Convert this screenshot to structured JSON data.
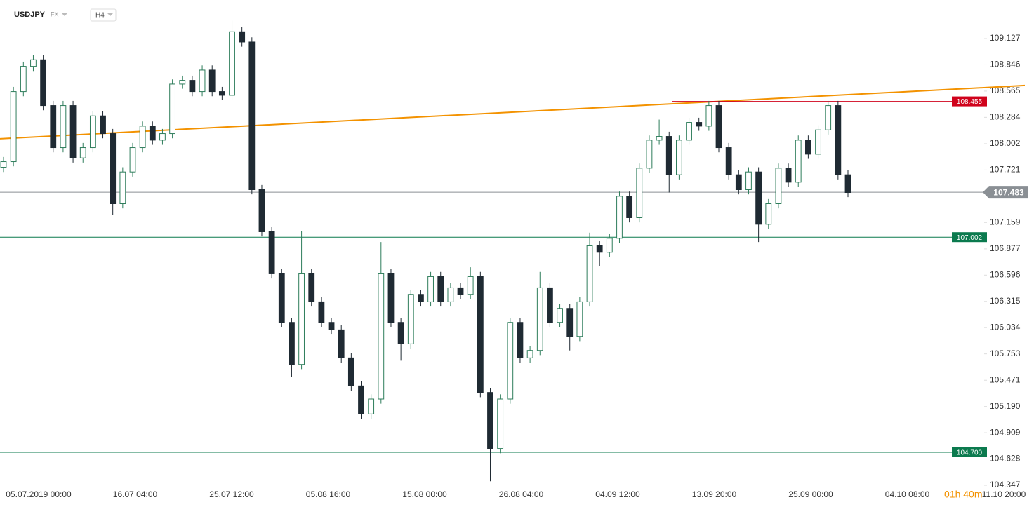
{
  "header": {
    "symbol": "USDJPY",
    "market": "FX",
    "interval": "H4"
  },
  "countdown": "01h 40m",
  "chart_data": {
    "type": "candlestick",
    "categories": [
      "05.07.2019  00:00",
      "16.07  04:00",
      "25.07  12:00",
      "05.08  16:00",
      "15.08  00:00",
      "26.08  04:00",
      "04.09  12:00",
      "13.09  20:00",
      "25.09  00:00",
      "04.10  08:00",
      "11.10  20:00"
    ],
    "open": [
      107.75,
      107.81,
      108.56,
      108.83,
      108.9,
      108.41,
      107.96,
      108.41,
      107.85,
      107.96,
      108.3,
      108.11,
      107.36,
      107.7,
      107.96,
      108.19,
      108.04,
      108.11,
      108.64,
      108.68,
      108.56,
      108.79,
      108.56,
      108.52,
      109.2,
      109.09,
      107.51,
      107.06,
      106.61,
      106.09,
      105.64,
      106.61,
      106.31,
      106.09,
      106.01,
      105.71,
      105.41,
      105.11,
      105.27,
      106.61,
      106.09,
      105.86,
      106.39,
      106.31,
      106.58,
      106.31,
      106.46,
      106.39,
      106.58,
      105.34,
      104.74,
      105.27,
      106.09,
      105.71,
      105.79,
      106.46,
      106.09,
      106.24,
      105.94,
      106.31,
      106.91,
      106.84,
      106.99,
      107.44,
      107.21,
      107.74,
      108.04,
      108.08,
      107.67,
      108.04,
      108.23,
      108.19,
      108.41,
      107.96,
      107.67,
      107.51,
      107.7,
      107.14,
      107.36,
      107.74,
      107.59,
      108.04,
      107.89,
      108.15,
      108.41,
      107.67
    ],
    "high": [
      107.86,
      108.61,
      108.88,
      108.95,
      108.95,
      108.46,
      108.46,
      108.46,
      108.01,
      108.35,
      108.35,
      108.16,
      107.75,
      108.01,
      108.24,
      108.24,
      108.16,
      108.69,
      108.73,
      108.73,
      108.84,
      108.84,
      108.61,
      109.32,
      109.25,
      109.14,
      107.56,
      107.11,
      106.66,
      106.14,
      107.07,
      106.66,
      106.36,
      106.14,
      106.06,
      105.76,
      105.46,
      105.32,
      106.95,
      106.66,
      106.14,
      106.44,
      106.44,
      106.63,
      106.63,
      106.51,
      106.51,
      106.68,
      106.63,
      105.39,
      105.32,
      106.14,
      106.14,
      105.84,
      106.63,
      106.51,
      106.29,
      106.29,
      106.36,
      107.05,
      106.96,
      107.04,
      107.49,
      107.49,
      107.79,
      108.09,
      108.26,
      108.13,
      108.09,
      108.28,
      108.28,
      108.46,
      108.46,
      108.01,
      107.72,
      107.75,
      107.75,
      107.41,
      107.79,
      107.79,
      108.09,
      108.09,
      108.2,
      108.46,
      108.46,
      107.72
    ],
    "low": [
      107.7,
      107.76,
      108.51,
      108.78,
      108.36,
      107.91,
      107.91,
      107.8,
      107.8,
      107.91,
      108.06,
      107.24,
      107.31,
      107.65,
      107.91,
      107.99,
      107.99,
      108.06,
      108.59,
      108.51,
      108.51,
      108.51,
      108.47,
      108.47,
      109.04,
      107.46,
      107.01,
      106.56,
      106.04,
      105.51,
      105.59,
      106.26,
      106.04,
      105.96,
      105.66,
      105.36,
      105.06,
      105.06,
      105.22,
      106.04,
      105.68,
      105.81,
      106.26,
      106.26,
      106.26,
      106.26,
      106.34,
      106.34,
      105.29,
      104.39,
      104.69,
      105.22,
      105.66,
      105.66,
      105.74,
      106.04,
      106.04,
      105.79,
      105.89,
      106.26,
      106.69,
      106.79,
      106.94,
      107.16,
      107.16,
      107.69,
      107.99,
      107.48,
      107.62,
      107.99,
      108.14,
      108.14,
      107.91,
      107.62,
      107.46,
      107.46,
      106.95,
      107.09,
      107.31,
      107.54,
      107.54,
      107.84,
      107.84,
      108.1,
      107.62,
      107.43
    ],
    "close": [
      107.81,
      108.56,
      108.83,
      108.9,
      108.41,
      107.96,
      108.41,
      107.85,
      107.96,
      108.3,
      108.11,
      107.36,
      107.7,
      107.96,
      108.19,
      108.04,
      108.11,
      108.64,
      108.68,
      108.56,
      108.79,
      108.56,
      108.52,
      109.2,
      109.09,
      107.51,
      107.06,
      106.61,
      106.09,
      105.64,
      106.61,
      106.31,
      106.09,
      106.01,
      105.71,
      105.41,
      105.11,
      105.27,
      106.61,
      106.09,
      105.86,
      106.39,
      106.31,
      106.58,
      106.31,
      106.46,
      106.39,
      106.58,
      105.34,
      104.74,
      105.27,
      106.09,
      105.71,
      105.79,
      106.46,
      106.09,
      106.24,
      105.94,
      106.31,
      106.91,
      106.84,
      106.99,
      107.44,
      107.21,
      107.74,
      108.04,
      108.08,
      107.67,
      108.04,
      108.23,
      108.19,
      108.41,
      107.96,
      107.67,
      107.51,
      107.7,
      107.14,
      107.36,
      107.74,
      107.59,
      108.04,
      107.89,
      108.15,
      108.41,
      107.67,
      107.48
    ],
    "up_color": "#2e7d5b",
    "down_color": "#1f2a33",
    "ylim": [
      104.347,
      109.54
    ],
    "yticks": [
      109.127,
      108.846,
      108.565,
      108.284,
      108.002,
      107.721,
      107.159,
      106.877,
      106.596,
      106.315,
      106.034,
      105.753,
      105.471,
      {
        "value": 105.19,
        "label": "105.190"
      },
      104.909,
      104.628,
      104.347
    ],
    "current_price": {
      "value": 107.483,
      "color": "#8a8f94"
    },
    "levels": [
      {
        "value": 108.455,
        "color": "#d0021b"
      },
      {
        "value": 107.002,
        "color": "#0b7a4e"
      },
      {
        "value": 104.7,
        "label": "104.700",
        "color": "#0b7a4e"
      }
    ],
    "trendline": {
      "start": 108.055,
      "end": 108.625,
      "color": "#f39200"
    }
  }
}
